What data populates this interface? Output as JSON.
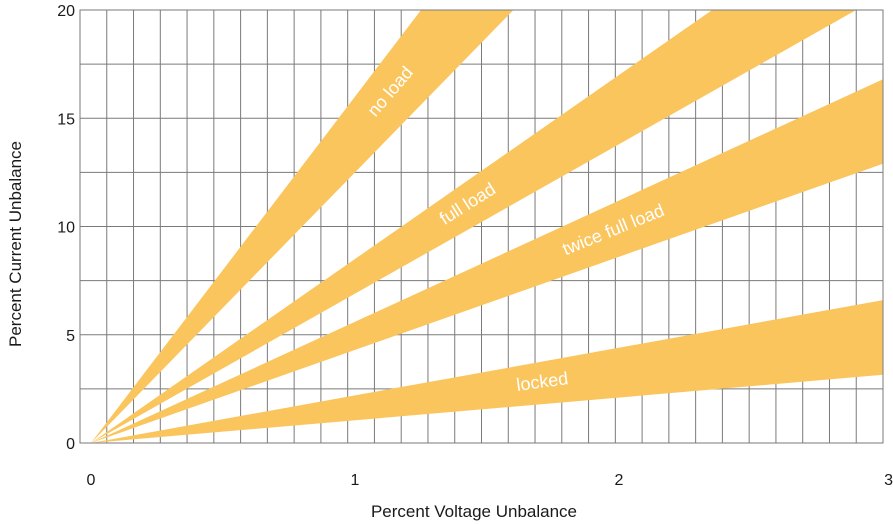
{
  "chart_data": {
    "type": "area",
    "title": "",
    "xlabel": "Percent Voltage Unbalance",
    "ylabel": "Percent Current Unbalance",
    "xlim": [
      0,
      3
    ],
    "ylim": [
      0,
      20
    ],
    "x_ticks": [
      "0",
      "1",
      "2",
      "3"
    ],
    "y_ticks": [
      "0",
      "5",
      "10",
      "15",
      "20"
    ],
    "grid": true,
    "band_color": "#fbc55e",
    "series": [
      {
        "name": "no load",
        "lower_slope": 12.5,
        "upper_slope": 16.0
      },
      {
        "name": "full load",
        "lower_slope": 6.9,
        "upper_slope": 8.5
      },
      {
        "name": "twice full load",
        "lower_slope": 4.3,
        "upper_slope": 5.6
      },
      {
        "name": "locked",
        "lower_slope": 1.05,
        "upper_slope": 2.2
      }
    ]
  }
}
